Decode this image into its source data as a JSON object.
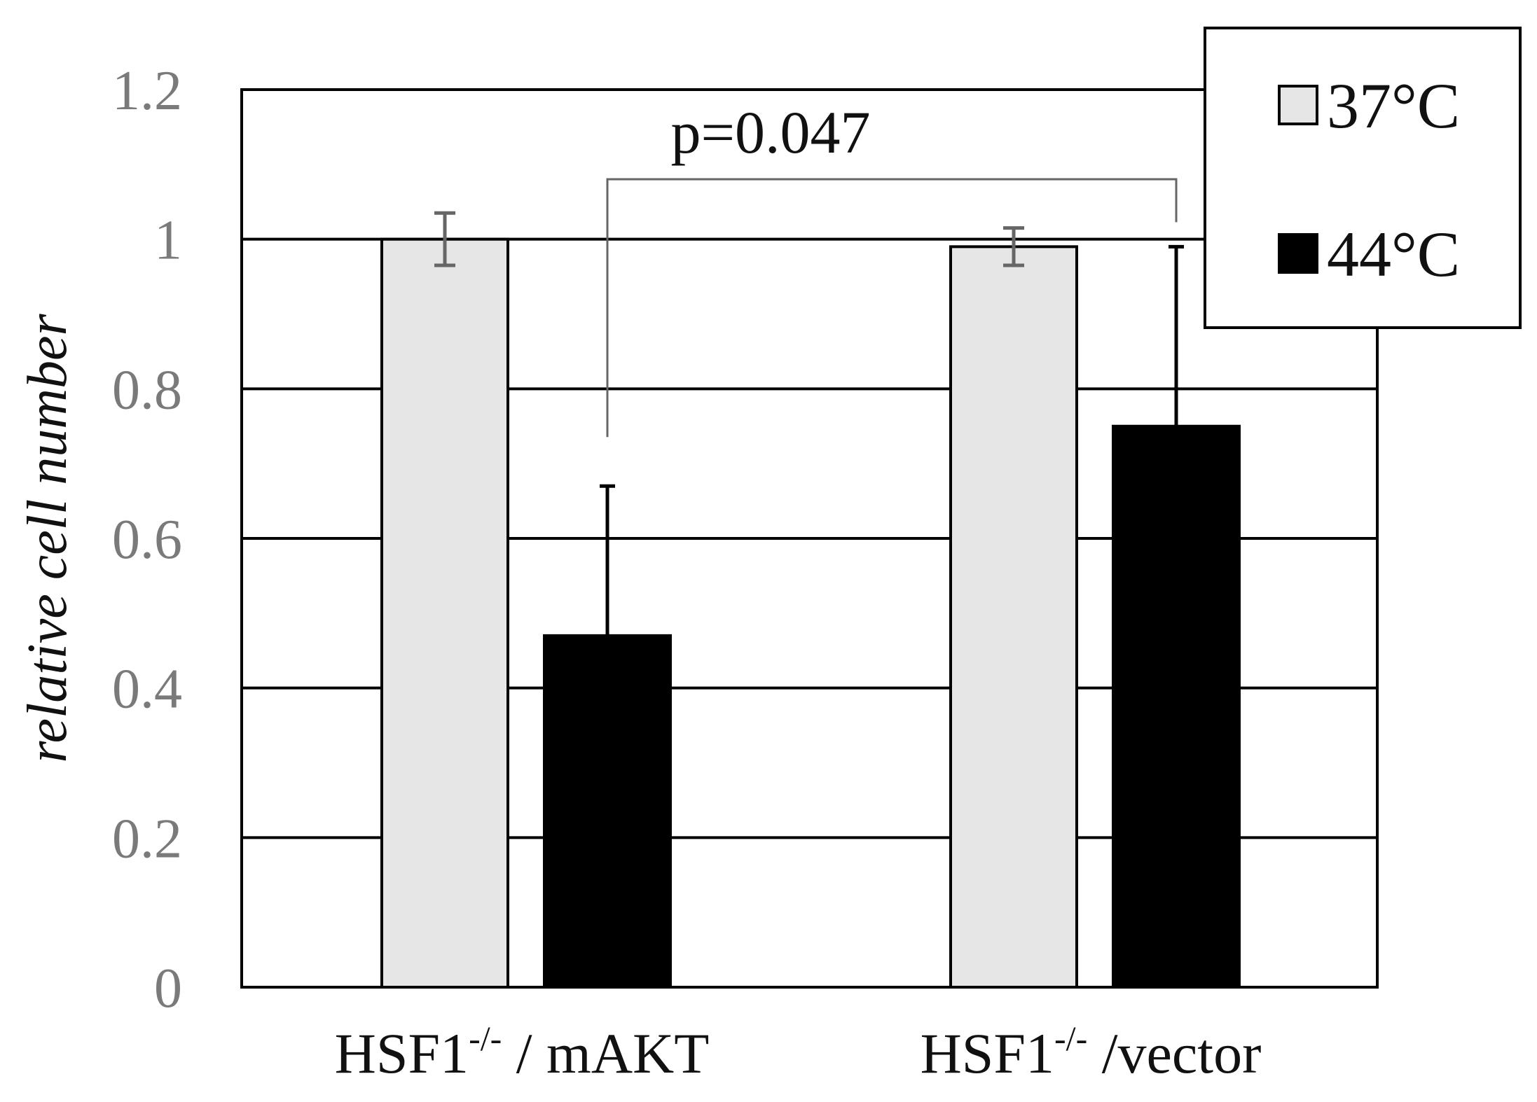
{
  "chart_data": {
    "type": "bar",
    "title": "",
    "xlabel": "",
    "ylabel": "relative cell number",
    "ylim": [
      0,
      1.2
    ],
    "yticks": [
      {
        "value": 0,
        "label": "0"
      },
      {
        "value": 0.2,
        "label": "0.2"
      },
      {
        "value": 0.4,
        "label": "0.4"
      },
      {
        "value": 0.6,
        "label": "0.6"
      },
      {
        "value": 0.8,
        "label": "0.8"
      },
      {
        "value": 1,
        "label": "1"
      },
      {
        "value": 1.2,
        "label": "1.2"
      }
    ],
    "categories": [
      {
        "base": "HSF1",
        "sup": "-/-",
        "rest": " / mAKT"
      },
      {
        "base": "HSF1",
        "sup": "-/-",
        "rest": " /vector"
      }
    ],
    "series": [
      {
        "name": "37°C",
        "color": "#e6e6e6",
        "values": [
          1.0,
          0.99
        ],
        "errors": [
          0.035,
          0.025
        ],
        "error_color": "#666666"
      },
      {
        "name": "44°C",
        "color": "#000000",
        "values": [
          0.47,
          0.75
        ],
        "errors": [
          0.2,
          0.24
        ],
        "error_color": "#000000"
      }
    ],
    "grid": true,
    "legend": "top-right",
    "annotation": {
      "text": "p=0.047",
      "from_category": 0,
      "to_category": 1,
      "series": 1
    }
  }
}
